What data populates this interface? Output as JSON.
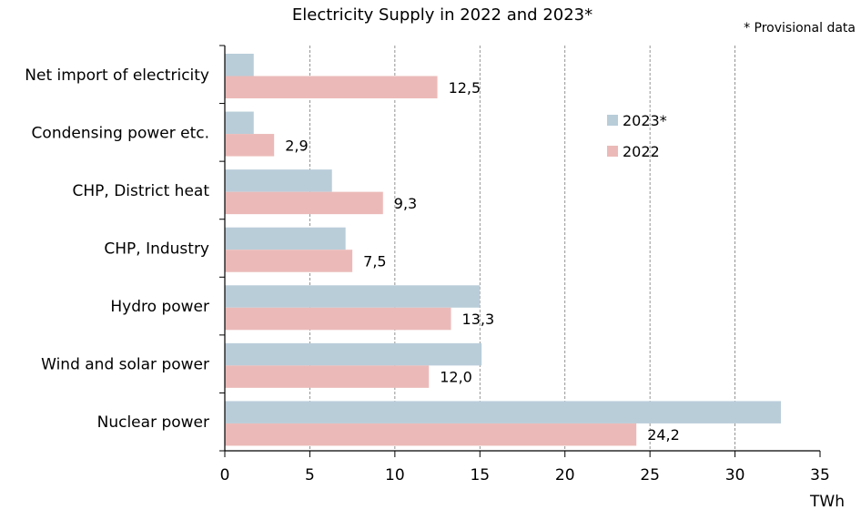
{
  "chart_data": {
    "type": "bar",
    "orientation": "horizontal",
    "title": "Electricity Supply in 2022 and 2023*",
    "note": "* Provisional data",
    "xlabel": "TWh",
    "xlim": [
      0,
      35
    ],
    "xticks": [
      "0",
      "5",
      "10",
      "15",
      "20",
      "25",
      "30",
      "35"
    ],
    "grid": "vertical dashed",
    "legend_position": "upper-right inside",
    "categories": [
      "Net import of electricity",
      "Condensing power etc.",
      "CHP, District heat",
      "CHP, Industry",
      "Hydro power",
      "Wind and solar power",
      "Nuclear power"
    ],
    "series": [
      {
        "name": "2023*",
        "color": "#b9cdd9",
        "values": [
          1.7,
          1.7,
          6.3,
          7.1,
          15.0,
          15.1,
          32.7
        ]
      },
      {
        "name": "2022",
        "color": "#ebbab8",
        "values": [
          12.5,
          2.9,
          9.3,
          7.5,
          13.3,
          12.0,
          24.2
        ],
        "data_labels": [
          "12,5",
          "2,9",
          "9,3",
          "7,5",
          "13,3",
          "12,0",
          "24,2"
        ]
      }
    ]
  }
}
